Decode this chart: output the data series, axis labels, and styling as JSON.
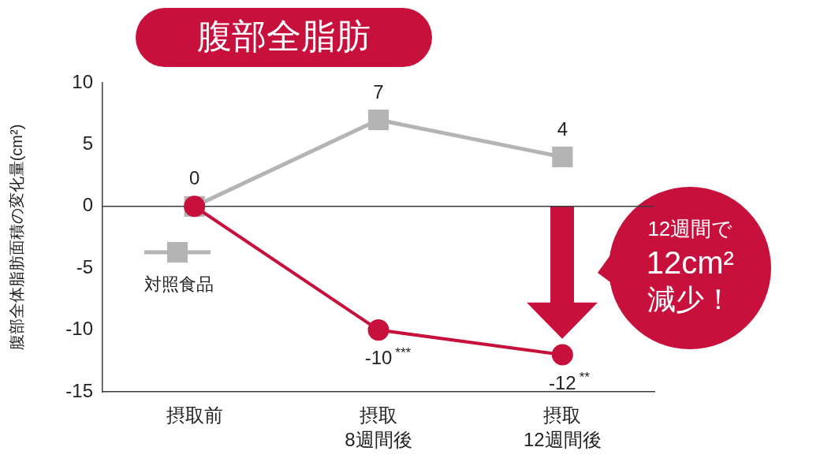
{
  "chart_data": {
    "type": "line",
    "title": "腹部全脂肪",
    "ylabel": "腹部全体脂肪面積の変化量(cm²)",
    "categories": [
      "摂取前",
      "摂取\n8週間後",
      "摂取\n12週間後"
    ],
    "ylim": [
      -15,
      10
    ],
    "yticks": [
      -15,
      -10,
      -5,
      0,
      5,
      10
    ],
    "series": [
      {
        "name": "対照食品",
        "color": "#b4b4b4",
        "marker": "square",
        "values": [
          0,
          7,
          4
        ],
        "value_labels": [
          "0",
          "7",
          "4"
        ]
      },
      {
        "color": "#c8103c",
        "marker": "circle",
        "values": [
          0,
          -10,
          -12
        ],
        "value_labels": [
          null,
          "-10$^{***}$",
          "-12$^{**}$"
        ]
      }
    ],
    "ref_lines": [
      {
        "axis": "y",
        "value": 0,
        "color": "#3c3c3c"
      }
    ],
    "annotations": [
      "12週間で\n12cm²\n減少！"
    ],
    "legend": "bottom left",
    "line_style": "solid"
  }
}
